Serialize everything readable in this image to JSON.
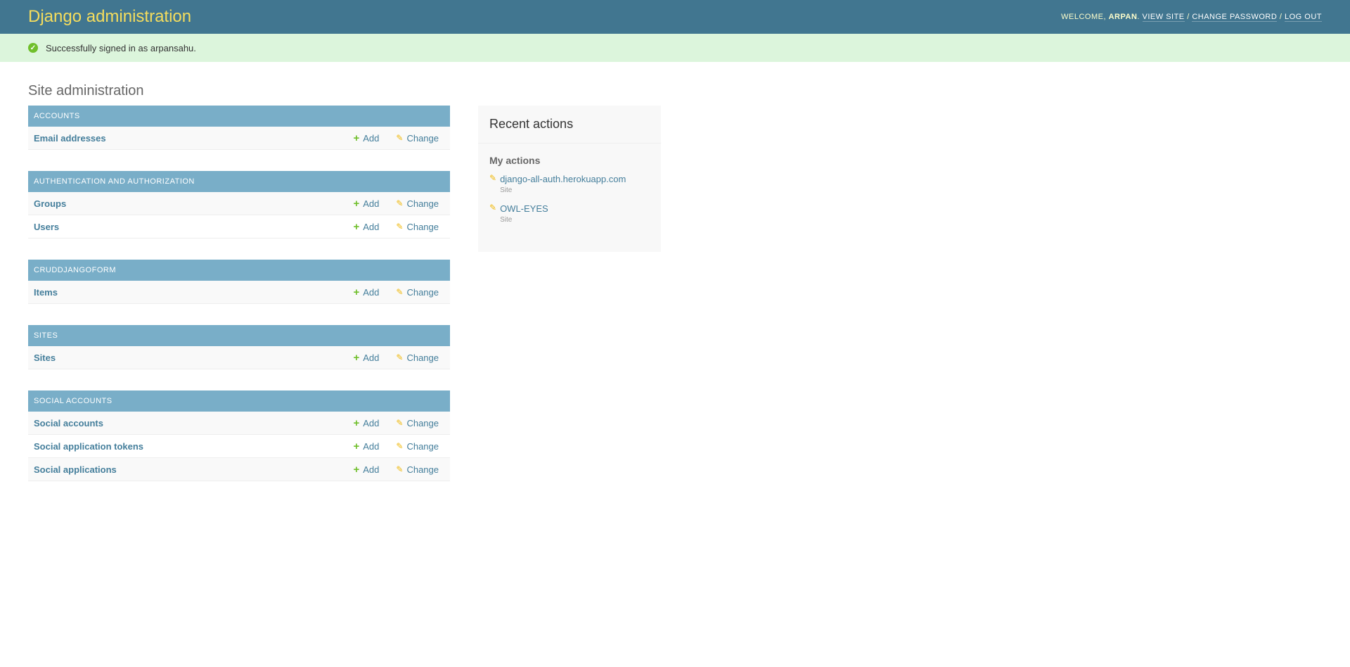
{
  "header": {
    "title": "Django administration",
    "welcome": "Welcome,",
    "user": "Arpan",
    "view_site": "View site",
    "change_password": "Change password",
    "log_out": "Log out"
  },
  "message": "Successfully signed in as arpansahu.",
  "page_title": "Site administration",
  "modules": [
    {
      "caption": "Accounts",
      "rows": [
        "Email addresses"
      ]
    },
    {
      "caption": "Authentication and Authorization",
      "rows": [
        "Groups",
        "Users"
      ]
    },
    {
      "caption": "Cruddjangoform",
      "rows": [
        "Items"
      ]
    },
    {
      "caption": "Sites",
      "rows": [
        "Sites"
      ]
    },
    {
      "caption": "Social Accounts",
      "rows": [
        "Social accounts",
        "Social application tokens",
        "Social applications"
      ]
    }
  ],
  "labels": {
    "add": "Add",
    "change": "Change"
  },
  "recent": {
    "title": "Recent actions",
    "subtitle": "My actions",
    "items": [
      {
        "label": "django-all-auth.herokuapp.com",
        "type": "Site"
      },
      {
        "label": "OWL-EYES",
        "type": "Site"
      }
    ]
  },
  "colors": {
    "header": "#417690",
    "brand": "#f5dd5d",
    "caption": "#79aec8",
    "link": "#447e9b",
    "message_bg": "#dcf5dc"
  }
}
